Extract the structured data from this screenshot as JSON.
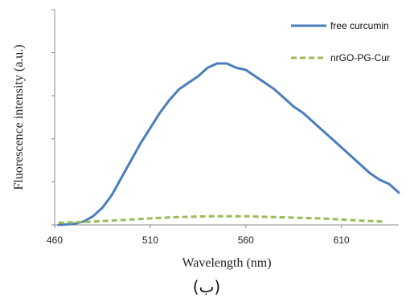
{
  "chart_data": {
    "type": "line",
    "xlabel": "Wavelength (nm)",
    "ylabel": "Fluorescence intensity (a.u.)",
    "xlim": [
      460,
      640
    ],
    "ylim": [
      0,
      100
    ],
    "x_ticks": [
      460,
      510,
      560,
      610
    ],
    "y_tick_labels": "none",
    "grid": false,
    "legend_position": "top-right",
    "panel_label": "(ب)",
    "series": [
      {
        "name": "free curcumin",
        "color": "#4a7ebb",
        "style": "solid",
        "x": [
          462,
          470,
          475,
          480,
          485,
          490,
          495,
          500,
          505,
          510,
          515,
          520,
          525,
          530,
          535,
          540,
          545,
          550,
          555,
          560,
          565,
          570,
          575,
          580,
          585,
          590,
          595,
          600,
          605,
          610,
          615,
          620,
          625,
          630,
          635,
          640
        ],
        "values": [
          0,
          0.5,
          1.5,
          4,
          8,
          14,
          22,
          30,
          38,
          45,
          52,
          58,
          63,
          66,
          69,
          73,
          75,
          75,
          73,
          72,
          69,
          66,
          63,
          59,
          55,
          52,
          48,
          44,
          40,
          36,
          32,
          28,
          24,
          21,
          19,
          15
        ]
      },
      {
        "name": "nrGO-PG-Cur",
        "color": "#9bbb59",
        "style": "dashed",
        "x": [
          462,
          480,
          500,
          520,
          540,
          560,
          580,
          600,
          620,
          633
        ],
        "values": [
          1,
          1.5,
          2.5,
          3.5,
          4,
          4,
          3.5,
          3,
          2,
          1.5
        ]
      }
    ]
  }
}
